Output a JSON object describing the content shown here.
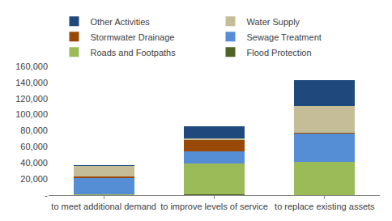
{
  "chart_data": {
    "type": "bar",
    "stacked": true,
    "legend": "top",
    "grid": false,
    "categories": [
      "to meet additional demand",
      "to improve levels of service",
      "to replace existing assets"
    ],
    "series": [
      {
        "name": "Other Activities",
        "color": "#1f497d",
        "values": [
          1000,
          16000,
          32000
        ]
      },
      {
        "name": "Water Supply",
        "color": "#c4bd97",
        "values": [
          13000,
          2000,
          33000
        ]
      },
      {
        "name": "Stormwater Drainage",
        "color": "#984807",
        "values": [
          2500,
          14000,
          1000
        ]
      },
      {
        "name": "Sewage Treatment",
        "color": "#558ed5",
        "values": [
          20000,
          15000,
          35000
        ]
      },
      {
        "name": "Roads and Footpaths",
        "color": "#9bbb59",
        "values": [
          500,
          38000,
          41000
        ]
      },
      {
        "name": "Flood Protection",
        "color": "#4f6228",
        "values": [
          500,
          1000,
          500
        ]
      }
    ],
    "ylim": [
      0,
      160000
    ],
    "yticks": [
      {
        "value": 0,
        "label": "-"
      },
      {
        "value": 20000,
        "label": "20,000"
      },
      {
        "value": 40000,
        "label": "40,000"
      },
      {
        "value": 60000,
        "label": "60,000"
      },
      {
        "value": 80000,
        "label": "80,000"
      },
      {
        "value": 100000,
        "label": "100,000"
      },
      {
        "value": 120000,
        "label": "120,000"
      },
      {
        "value": 140000,
        "label": "140,000"
      },
      {
        "value": 160000,
        "label": "160,000"
      }
    ]
  }
}
